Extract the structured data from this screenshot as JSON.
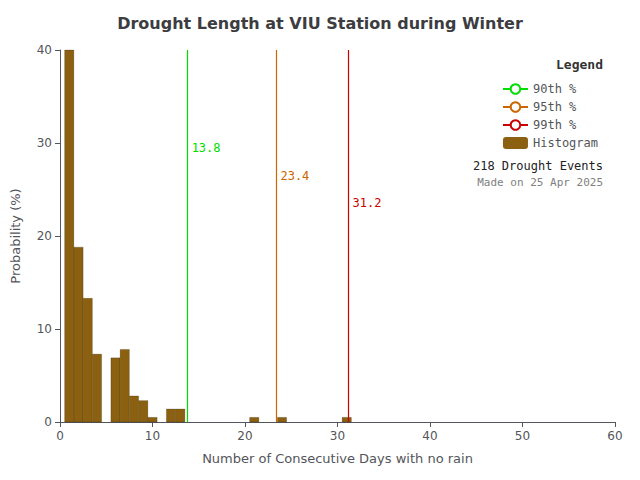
{
  "chart_data": {
    "type": "histogram",
    "title": "Drought Length at VIU Station during Winter",
    "xlabel": "Number of Consecutive Days with no rain",
    "ylabel": "Probability (%)",
    "bins": [
      0.5,
      1.5,
      2.5,
      3.5,
      4.5,
      5.5,
      6.5,
      7.5,
      8.5,
      9.5,
      10.5,
      11.5,
      12.5,
      13.5,
      14.5,
      15.5,
      16.5,
      17.5,
      18.5,
      19.5,
      20.5,
      21.5,
      22.5,
      23.5,
      24.5,
      25.5,
      26.5,
      27.5,
      28.5,
      29.5,
      30.5,
      31.5,
      32.5,
      33.5,
      34.5,
      35.5,
      36.5,
      37.5,
      38.5,
      39.5,
      40.5,
      41.5,
      42.5,
      43.5,
      44.5,
      45.5,
      46.5,
      47.5,
      48.5,
      49.5,
      50.5,
      51.5,
      52.5,
      53.5,
      54.5,
      55.5,
      56.5,
      57.5,
      58.5,
      59.5
    ],
    "values": [
      40.0,
      18.8,
      13.3,
      7.3,
      0.0,
      6.9,
      7.8,
      2.8,
      2.3,
      0.5,
      0.0,
      1.4,
      1.4,
      0.0,
      0.0,
      0.0,
      0.0,
      0.0,
      0.0,
      0.0,
      0.5,
      0.0,
      0.0,
      0.5,
      0.0,
      0.0,
      0.0,
      0.0,
      0.0,
      0.0,
      0.5,
      0.0,
      0.0,
      0.0,
      0.0,
      0.0,
      0.0,
      0.0,
      0.0,
      0.0,
      0.0,
      0.0,
      0.0,
      0.0,
      0.0,
      0.0,
      0.0,
      0.0,
      0.0,
      0.0,
      0.0,
      0.0,
      0.0,
      0.0,
      0.0,
      0.0,
      0.0,
      0.0,
      0.0
    ],
    "name": "Histogram",
    "color": "#8B6010",
    "xlim": [
      0,
      60
    ],
    "xticks": [
      0,
      10,
      20,
      30,
      40,
      50,
      60
    ],
    "ylim": [
      0,
      40
    ],
    "yticks": [
      0,
      10,
      20,
      30,
      40
    ],
    "grid": false,
    "legend": "upper right",
    "legend_title": "Legend",
    "lines": [
      {
        "name": "90th %",
        "x": 13.8,
        "color": "#00dd00"
      },
      {
        "name": "95th %",
        "x": 23.4,
        "color": "#cc6600"
      },
      {
        "name": "99th %",
        "x": 31.2,
        "color": "#cc0000"
      }
    ],
    "annotations": [
      {
        "text": "13.8",
        "x": 13.8,
        "y": 29.5,
        "color": "#00dd00"
      },
      {
        "text": "23.4",
        "x": 23.4,
        "y": 26.5,
        "color": "#cc6600"
      },
      {
        "text": "31.2",
        "x": 31.2,
        "y": 23.5,
        "color": "#cc0000"
      }
    ],
    "legend_notes": [
      "218 Drought Events",
      "Made on 25 Apr 2025"
    ]
  }
}
